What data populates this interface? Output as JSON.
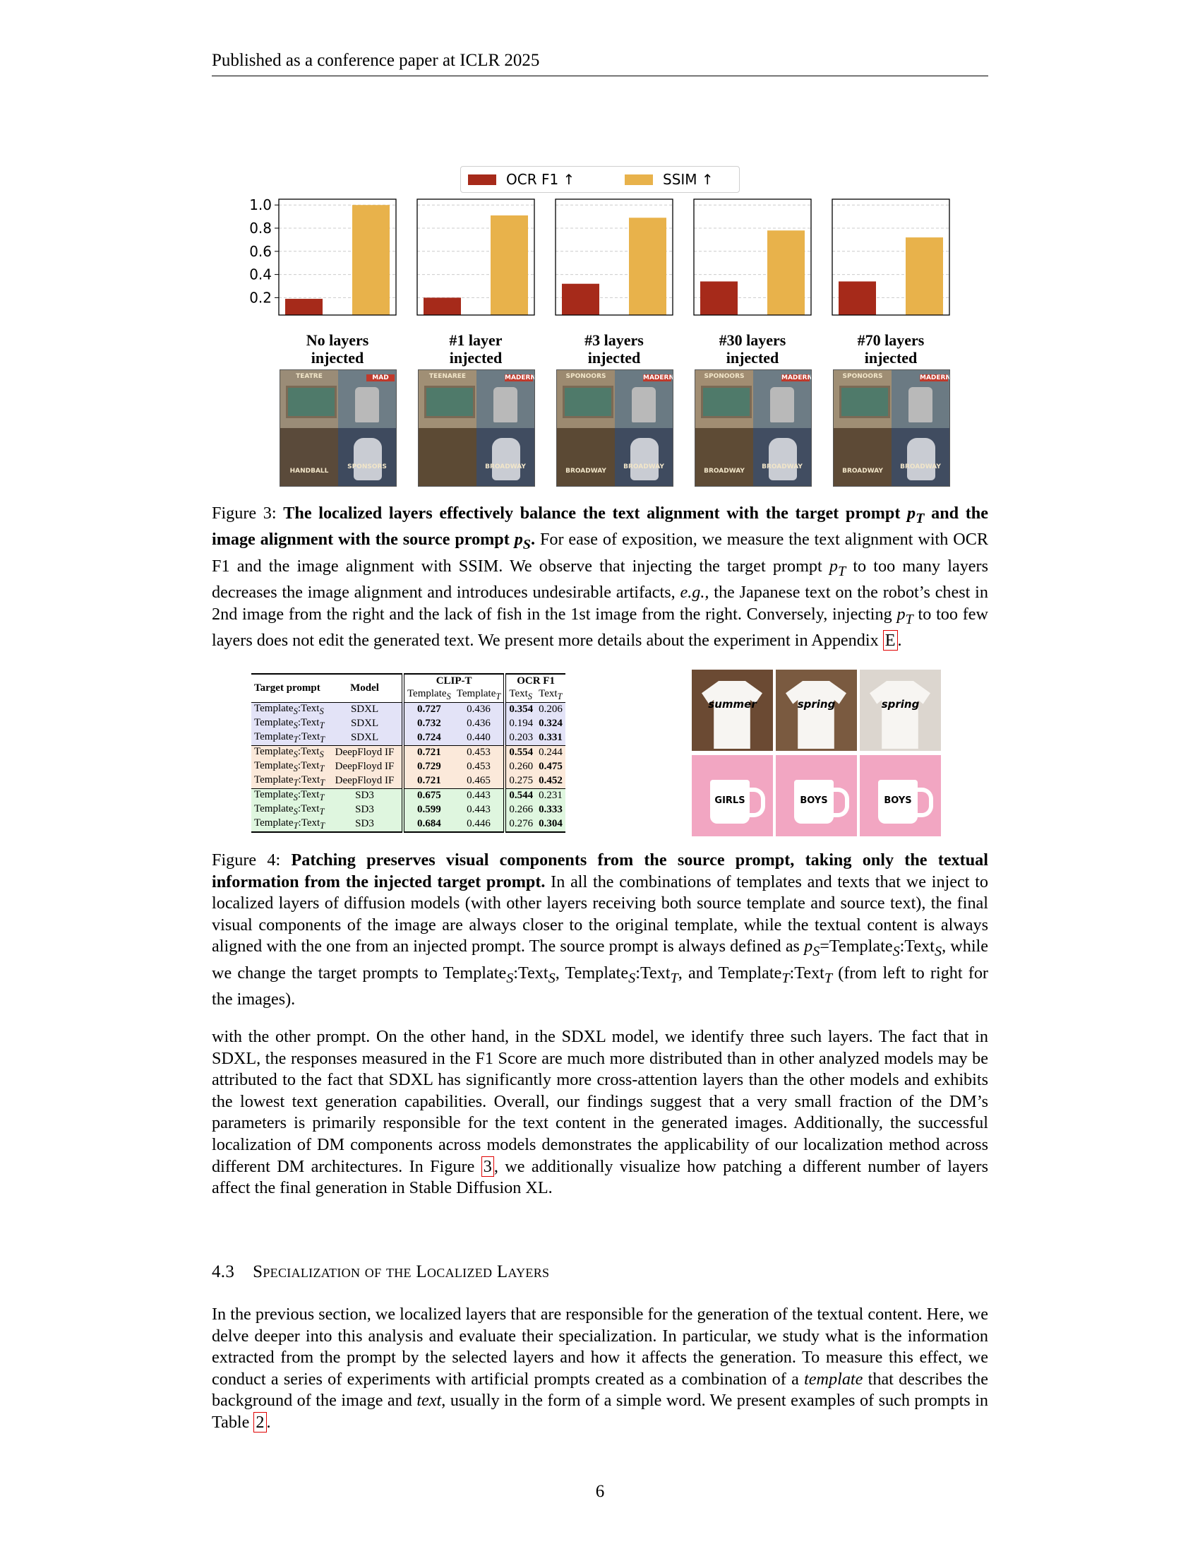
{
  "header": "Published as a conference paper at ICLR 2025",
  "chart_data": {
    "type": "bar",
    "legend": [
      {
        "label": "OCR F1 ↑",
        "color": "#a62a1a"
      },
      {
        "label": "SSIM ↑",
        "color": "#e8b24b"
      }
    ],
    "legend_placement": "top-center",
    "yticks": [
      "0.2",
      "0.4",
      "0.6",
      "0.8",
      "1.0"
    ],
    "ylim": [
      0.05,
      1.05
    ],
    "grid": true,
    "panels": [
      {
        "label_line1": "No layers",
        "label_line2": "injected",
        "ocr_f1": 0.19,
        "ssim": 1.0
      },
      {
        "label_line1": "#1 layer",
        "label_line2": "injected",
        "ocr_f1": 0.2,
        "ssim": 0.91
      },
      {
        "label_line1": "#3 layers",
        "label_line2": "injected",
        "ocr_f1": 0.32,
        "ssim": 0.89
      },
      {
        "label_line1": "#30 layers",
        "label_line2": "injected",
        "ocr_f1": 0.34,
        "ssim": 0.78
      },
      {
        "label_line1": "#70 layers",
        "label_line2": "injected",
        "ocr_f1": 0.34,
        "ssim": 0.72
      }
    ]
  },
  "thumbnail_words": [
    [
      "TEATRE",
      "MAD",
      "HANDBALL",
      "SPONSORS"
    ],
    [
      "TEENAREE",
      "MADERN",
      "",
      "BROADWAY"
    ],
    [
      "SPONOORS",
      "MADERN",
      "BROADWAY",
      "BROADWAY"
    ],
    [
      "SPONOORS",
      "MADERN",
      "BROADWAY",
      "BROADWAY"
    ],
    [
      "SPONOORS",
      "MADERN",
      "BROADWAY",
      "BROADWAY"
    ]
  ],
  "fig3": {
    "prefix": "Figure 3: ",
    "bold1": "The localized layers effectively balance the text alignment with the target prompt ",
    "pT": "p",
    "pT_sub": "T",
    "bold2": " and the image alignment with the source prompt ",
    "pS": "p",
    "pS_sub": "S",
    "bold3": ".",
    "rest1": " For ease of exposition, we measure the text alignment with OCR F1 and the image alignment with SSIM. We observe that injecting the target prompt ",
    "rest2": " to too many layers decreases the image alignment and introduces undesirable artifacts, ",
    "eg": "e.g.,",
    "rest3": " the Japanese text on the robot’s chest in 2nd image from the right and the lack of fish in the 1st image from the right. Conversely, injecting ",
    "rest4": " to too few layers does not edit the generated text. We present more details about the experiment in Appendix ",
    "ref": "E",
    "end": "."
  },
  "table": {
    "headers": {
      "target_prompt": "Target prompt",
      "model": "Model",
      "clip_t": "CLIP-T",
      "ocr_f1": "OCR F1",
      "template": "Template",
      "text": "Text",
      "sub_s": "S",
      "sub_t": "T"
    },
    "rows": [
      {
        "tpl": "S",
        "txt": "S",
        "model": "SDXL",
        "c1": "0.727",
        "c2": "0.436",
        "o1": "0.354",
        "o2": "0.206",
        "b": [
          1,
          0,
          1,
          0
        ]
      },
      {
        "tpl": "S",
        "txt": "T",
        "model": "SDXL",
        "c1": "0.732",
        "c2": "0.436",
        "o1": "0.194",
        "o2": "0.324",
        "b": [
          1,
          0,
          0,
          1
        ]
      },
      {
        "tpl": "T",
        "txt": "T",
        "model": "SDXL",
        "c1": "0.724",
        "c2": "0.440",
        "o1": "0.203",
        "o2": "0.331",
        "b": [
          1,
          0,
          0,
          1
        ]
      },
      {
        "tpl": "S",
        "txt": "S",
        "model": "DeepFloyd IF",
        "c1": "0.721",
        "c2": "0.453",
        "o1": "0.554",
        "o2": "0.244",
        "b": [
          1,
          0,
          1,
          0
        ]
      },
      {
        "tpl": "S",
        "txt": "T",
        "model": "DeepFloyd IF",
        "c1": "0.729",
        "c2": "0.453",
        "o1": "0.260",
        "o2": "0.475",
        "b": [
          1,
          0,
          0,
          1
        ]
      },
      {
        "tpl": "T",
        "txt": "T",
        "model": "DeepFloyd IF",
        "c1": "0.721",
        "c2": "0.465",
        "o1": "0.275",
        "o2": "0.452",
        "b": [
          1,
          0,
          0,
          1
        ]
      },
      {
        "tpl": "S",
        "txt": "T",
        "model": "SD3",
        "c1": "0.675",
        "c2": "0.443",
        "o1": "0.544",
        "o2": "0.231",
        "b": [
          1,
          0,
          1,
          0
        ]
      },
      {
        "tpl": "S",
        "txt": "T",
        "model": "SD3",
        "c1": "0.599",
        "c2": "0.443",
        "o1": "0.266",
        "o2": "0.333",
        "b": [
          1,
          0,
          0,
          1
        ]
      },
      {
        "tpl": "T",
        "txt": "T",
        "model": "SD3",
        "c1": "0.684",
        "c2": "0.446",
        "o1": "0.276",
        "o2": "0.304",
        "b": [
          1,
          0,
          0,
          1
        ]
      }
    ]
  },
  "photos": {
    "shirts": [
      "summer",
      "spring",
      "spring"
    ],
    "mugs": [
      "GIRLS",
      "BOYS",
      "BOYS"
    ]
  },
  "fig4": {
    "prefix": "Figure 4: ",
    "bold": "Patching preserves visual components from the source prompt, taking only the textual information from the injected target prompt.",
    "rest1": " In all the combinations of templates and texts that we inject to localized layers of diffusion models (with other layers receiving both source template and source text), the final visual components of the image are always closer to the original template, while the textual content is always aligned with the one from an injected prompt. The source prompt is always defined as ",
    "def": "=Template",
    "rest2": ", while we change the target prompts to ",
    "last": " (from left to right for the images)."
  },
  "para1": {
    "text": "with the other prompt. On the other hand, in the SDXL model, we identify three such layers. The fact that in SDXL, the responses measured in the F1 Score are much more distributed than in other analyzed models may be attributed to the fact that SDXL has significantly more cross-attention layers than the other models and exhibits the lowest text generation capabilities. Overall, our findings suggest that a very small fraction of the DM’s parameters is primarily responsible for the text content in the generated images. Additionally, the successful localization of DM components across models demonstrates the applicability of our localization method across different DM architectures. In Figure ",
    "ref": "3",
    "text2": ", we additionally visualize how patching a different number of layers affect the final generation in Stable Diffusion XL."
  },
  "section": {
    "number": "4.3",
    "title": "Specialization of the Localized Layers"
  },
  "para2": {
    "t1": "In the previous section, we localized layers that are responsible for the generation of the textual content. Here, we delve deeper into this analysis and evaluate their specialization. In particular, we study what is the information extracted from the prompt by the selected layers and how it affects the generation. To measure this effect, we conduct a series of experiments with artificial prompts created as a combination of a ",
    "i1": "template",
    "t2": " that describes the background of the image and ",
    "i2": "text",
    "t3": ", usually in the form of a simple word. We present examples of such prompts in Table ",
    "ref": "2",
    "t4": "."
  },
  "page_number": "6"
}
